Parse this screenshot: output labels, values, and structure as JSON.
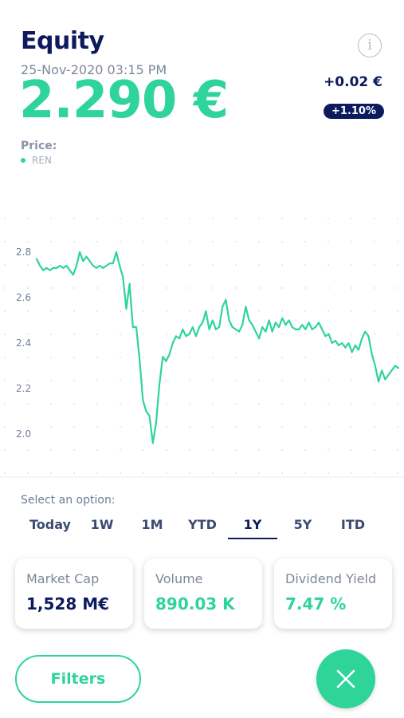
{
  "header": {
    "title": "Equity",
    "timestamp": "25-Nov-2020 03:15 PM",
    "price": "2.290 €",
    "change_abs": "+0.02 €",
    "change_pct": "+1.10%",
    "info_icon": "info-icon"
  },
  "chart_section": {
    "label": "Price:",
    "legend": "REN"
  },
  "chart_data": {
    "type": "line",
    "series": [
      {
        "name": "REN",
        "color": "#2fd49a",
        "values": [
          2.77,
          2.74,
          2.72,
          2.73,
          2.72,
          2.73,
          2.73,
          2.74,
          2.73,
          2.74,
          2.72,
          2.7,
          2.74,
          2.8,
          2.76,
          2.78,
          2.76,
          2.74,
          2.73,
          2.74,
          2.73,
          2.74,
          2.75,
          2.75,
          2.8,
          2.74,
          2.69,
          2.55,
          2.66,
          2.47,
          2.47,
          2.33,
          2.15,
          2.1,
          2.08,
          1.96,
          2.05,
          2.22,
          2.34,
          2.32,
          2.35,
          2.4,
          2.43,
          2.42,
          2.46,
          2.43,
          2.44,
          2.47,
          2.43,
          2.47,
          2.49,
          2.54,
          2.46,
          2.5,
          2.46,
          2.47,
          2.56,
          2.59,
          2.5,
          2.47,
          2.46,
          2.45,
          2.48,
          2.56,
          2.5,
          2.48,
          2.45,
          2.42,
          2.47,
          2.45,
          2.5,
          2.45,
          2.49,
          2.47,
          2.51,
          2.48,
          2.5,
          2.47,
          2.46,
          2.46,
          2.48,
          2.46,
          2.49,
          2.46,
          2.47,
          2.49,
          2.46,
          2.43,
          2.44,
          2.4,
          2.41,
          2.39,
          2.4,
          2.38,
          2.4,
          2.36,
          2.39,
          2.37,
          2.42,
          2.45,
          2.43,
          2.35,
          2.3,
          2.23,
          2.28,
          2.24,
          2.26,
          2.28,
          2.3,
          2.29
        ]
      }
    ],
    "yticks": [
      "2.8",
      "2.6",
      "2.4",
      "2.2",
      "2.0"
    ],
    "ylim": [
      1.9,
      2.9
    ],
    "grid": "dotted",
    "xlabel": "",
    "ylabel": ""
  },
  "range_selector": {
    "label": "Select an option:",
    "options": [
      "Today",
      "1W",
      "1M",
      "YTD",
      "1Y",
      "5Y",
      "ITD"
    ],
    "selected": "1Y"
  },
  "stats": [
    {
      "label": "Market Cap",
      "value": "1,528 M€",
      "color": "#0d1b5e"
    },
    {
      "label": "Volume",
      "value": "890.03 K",
      "color": "#2fd49a"
    },
    {
      "label": "Dividend Yield",
      "value": "7.47 %",
      "color": "#2fd49a"
    }
  ],
  "actions": {
    "filters_label": "Filters",
    "close_icon": "close-icon"
  },
  "colors": {
    "accent": "#2fd49a",
    "navy": "#0d1b5e",
    "muted": "#7f8798"
  }
}
